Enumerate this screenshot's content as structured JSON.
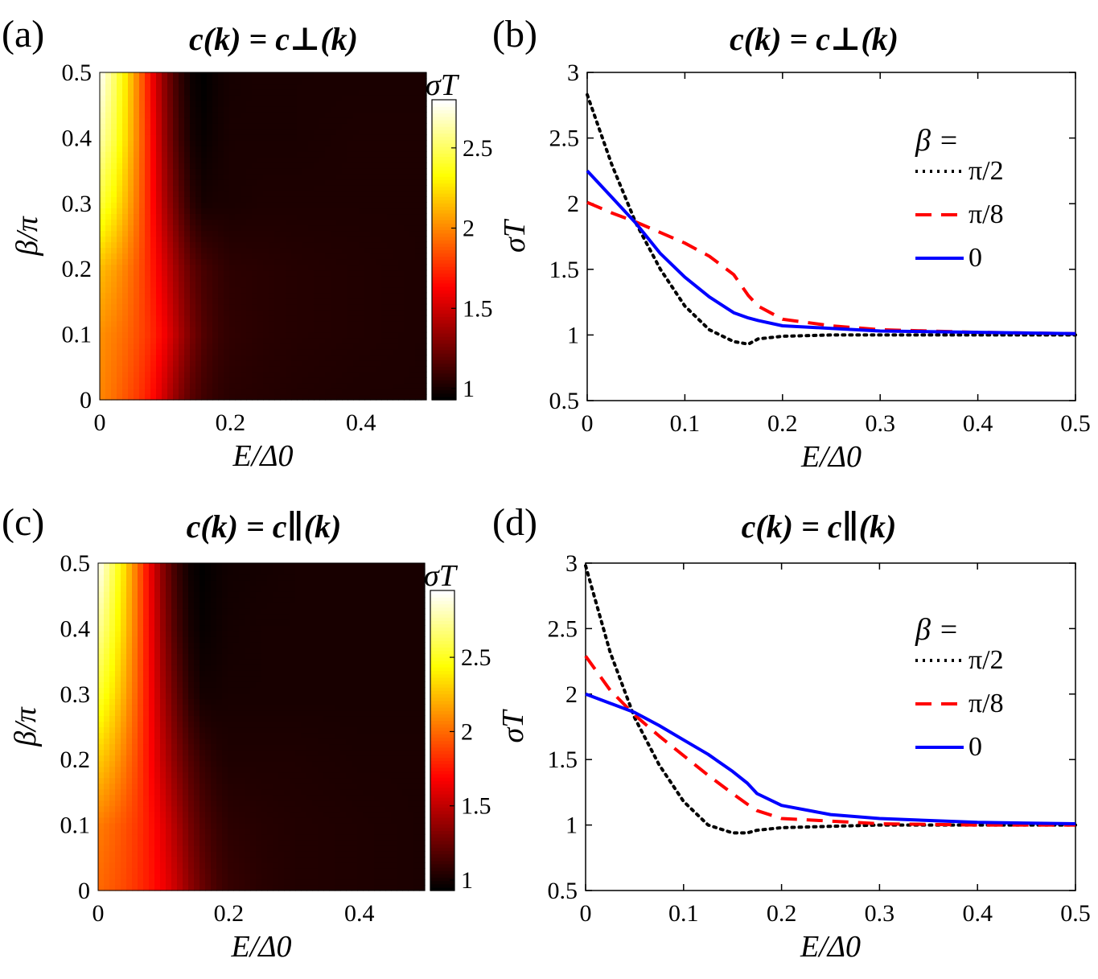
{
  "chart_data": [
    {
      "panel": "(a)",
      "type": "heatmap",
      "title": "c(k) = c⊥(k)",
      "xlabel": "E/Δ0",
      "ylabel": "β/π",
      "xlim": [
        0,
        0.5
      ],
      "ylim": [
        0,
        0.5
      ],
      "xticks": [
        "0",
        "0.2",
        "0.4"
      ],
      "yticks": [
        "0",
        "0.1",
        "0.2",
        "0.3",
        "0.4",
        "0.5"
      ],
      "colorbar": {
        "label": "σT",
        "ticks": [
          "1",
          "1.5",
          "2",
          "2.5"
        ],
        "range": [
          0.93,
          2.8
        ]
      },
      "grid_E": [
        0,
        0.02,
        0.04,
        0.06,
        0.08,
        0.1,
        0.12,
        0.14,
        0.16,
        0.18,
        0.2,
        0.25,
        0.3,
        0.4,
        0.5
      ],
      "grid_beta": [
        0,
        0.1,
        0.2,
        0.3,
        0.4,
        0.5
      ],
      "z": [
        [
          2.0,
          1.94,
          1.86,
          1.78,
          1.66,
          1.48,
          1.3,
          1.17,
          1.1,
          1.06,
          1.04,
          1.03,
          1.02,
          1.01,
          1.01
        ],
        [
          2.03,
          1.98,
          1.92,
          1.84,
          1.74,
          1.6,
          1.42,
          1.26,
          1.15,
          1.09,
          1.06,
          1.04,
          1.03,
          1.02,
          1.01
        ],
        [
          2.15,
          2.08,
          1.98,
          1.86,
          1.7,
          1.52,
          1.34,
          1.2,
          1.12,
          1.08,
          1.05,
          1.04,
          1.03,
          1.02,
          1.01
        ],
        [
          2.45,
          2.32,
          2.14,
          1.92,
          1.66,
          1.4,
          1.2,
          1.05,
          0.99,
          1.0,
          1.0,
          1.01,
          1.01,
          1.01,
          1.01
        ],
        [
          2.65,
          2.48,
          2.24,
          1.96,
          1.64,
          1.34,
          1.12,
          0.99,
          0.95,
          0.98,
          1.0,
          1.0,
          1.0,
          1.01,
          1.01
        ],
        [
          2.8,
          2.56,
          2.28,
          1.96,
          1.6,
          1.3,
          1.08,
          0.96,
          0.93,
          0.97,
          0.99,
          1.0,
          1.0,
          1.0,
          1.0
        ]
      ]
    },
    {
      "panel": "(b)",
      "type": "line",
      "title": "c(k) = c⊥(k)",
      "xlabel": "E/Δ0",
      "ylabel": "σT",
      "xlim": [
        0,
        0.5
      ],
      "ylim": [
        0.5,
        3
      ],
      "xticks": [
        "0",
        "0.1",
        "0.2",
        "0.3",
        "0.4",
        "0.5"
      ],
      "yticks": [
        "0.5",
        "1",
        "1.5",
        "2",
        "2.5",
        "3"
      ],
      "legend_title": "β =",
      "x": [
        0,
        0.025,
        0.05,
        0.075,
        0.1,
        0.125,
        0.15,
        0.165,
        0.175,
        0.2,
        0.25,
        0.3,
        0.4,
        0.5
      ],
      "series": [
        {
          "name": "π/2",
          "style": "dotted",
          "color": "#000000",
          "values": [
            2.83,
            2.3,
            1.85,
            1.5,
            1.22,
            1.04,
            0.95,
            0.93,
            0.97,
            0.99,
            1.0,
            1.0,
            1.0,
            1.0
          ]
        },
        {
          "name": "π/8",
          "style": "dashed",
          "color": "#ff0000",
          "values": [
            2.01,
            1.93,
            1.86,
            1.78,
            1.7,
            1.6,
            1.46,
            1.3,
            1.22,
            1.12,
            1.07,
            1.04,
            1.02,
            1.01
          ]
        },
        {
          "name": "0",
          "style": "solid",
          "color": "#0000ff",
          "values": [
            2.25,
            2.05,
            1.85,
            1.62,
            1.44,
            1.29,
            1.17,
            1.13,
            1.11,
            1.07,
            1.05,
            1.03,
            1.02,
            1.01
          ]
        }
      ]
    },
    {
      "panel": "(c)",
      "type": "heatmap",
      "title": "c(k) = c∥(k)",
      "xlabel": "E/Δ0",
      "ylabel": "β/π",
      "xlim": [
        0,
        0.5
      ],
      "ylim": [
        0,
        0.5
      ],
      "xticks": [
        "0",
        "0.2",
        "0.4"
      ],
      "yticks": [
        "0",
        "0.1",
        "0.2",
        "0.3",
        "0.4",
        "0.5"
      ],
      "colorbar": {
        "label": "σT",
        "ticks": [
          "1",
          "1.5",
          "2",
          "2.5"
        ],
        "range": [
          0.93,
          2.95
        ]
      },
      "grid_E": [
        0,
        0.02,
        0.04,
        0.06,
        0.08,
        0.1,
        0.12,
        0.14,
        0.16,
        0.18,
        0.2,
        0.25,
        0.3,
        0.4,
        0.5
      ],
      "grid_beta": [
        0,
        0.1,
        0.2,
        0.3,
        0.4,
        0.5
      ],
      "z": [
        [
          2.0,
          1.95,
          1.9,
          1.83,
          1.75,
          1.65,
          1.52,
          1.36,
          1.24,
          1.14,
          1.09,
          1.05,
          1.03,
          1.02,
          1.01
        ],
        [
          2.06,
          2.0,
          1.93,
          1.85,
          1.74,
          1.6,
          1.44,
          1.28,
          1.17,
          1.1,
          1.06,
          1.04,
          1.03,
          1.02,
          1.01
        ],
        [
          2.3,
          2.2,
          2.06,
          1.9,
          1.7,
          1.5,
          1.32,
          1.18,
          1.09,
          1.04,
          1.02,
          1.02,
          1.02,
          1.01,
          1.01
        ],
        [
          2.55,
          2.4,
          2.2,
          1.96,
          1.68,
          1.42,
          1.22,
          1.06,
          0.99,
          0.99,
          1.0,
          1.0,
          1.0,
          1.0,
          1.0
        ],
        [
          2.75,
          2.55,
          2.3,
          2.0,
          1.66,
          1.36,
          1.14,
          1.0,
          0.95,
          0.97,
          0.99,
          1.0,
          1.0,
          1.0,
          1.0
        ],
        [
          2.95,
          2.66,
          2.36,
          2.02,
          1.64,
          1.32,
          1.1,
          0.97,
          0.93,
          0.96,
          0.98,
          0.99,
          1.0,
          1.0,
          1.0
        ]
      ]
    },
    {
      "panel": "(d)",
      "type": "line",
      "title": "c(k) = c∥(k)",
      "xlabel": "E/Δ0",
      "ylabel": "σT",
      "xlim": [
        0,
        0.5
      ],
      "ylim": [
        0.5,
        3
      ],
      "xticks": [
        "0",
        "0.1",
        "0.2",
        "0.3",
        "0.4",
        "0.5"
      ],
      "yticks": [
        "0.5",
        "1",
        "1.5",
        "2",
        "2.5",
        "3"
      ],
      "legend_title": "β =",
      "x": [
        0,
        0.025,
        0.05,
        0.075,
        0.1,
        0.125,
        0.15,
        0.165,
        0.175,
        0.2,
        0.25,
        0.3,
        0.4,
        0.5
      ],
      "series": [
        {
          "name": "π/2",
          "style": "dotted",
          "color": "#000000",
          "values": [
            2.98,
            2.32,
            1.82,
            1.46,
            1.18,
            1.0,
            0.94,
            0.94,
            0.96,
            0.98,
            0.99,
            1.0,
            1.0,
            1.0
          ]
        },
        {
          "name": "π/8",
          "style": "dashed",
          "color": "#ff0000",
          "values": [
            2.29,
            2.03,
            1.84,
            1.68,
            1.53,
            1.38,
            1.24,
            1.16,
            1.11,
            1.05,
            1.03,
            1.01,
            1.0,
            1.0
          ]
        },
        {
          "name": "0",
          "style": "solid",
          "color": "#0000ff",
          "values": [
            2.0,
            1.93,
            1.86,
            1.76,
            1.65,
            1.54,
            1.41,
            1.32,
            1.24,
            1.15,
            1.08,
            1.05,
            1.02,
            1.01
          ]
        }
      ]
    }
  ]
}
